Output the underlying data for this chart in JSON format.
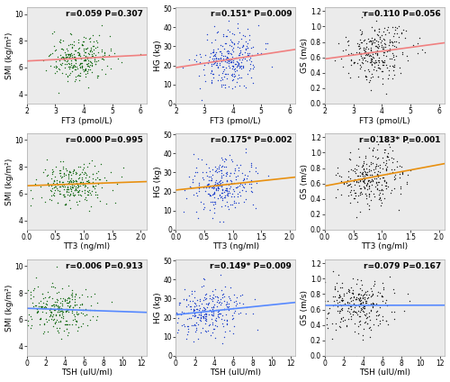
{
  "subplots": [
    {
      "row": 0,
      "col": 0,
      "xlabel": "FT3 (pmol/L)",
      "ylabel": "SMI (kg/m²)",
      "xlim": [
        2.0,
        6.2
      ],
      "ylim": [
        3.3,
        10.5
      ],
      "xticks": [
        2.0,
        3.0,
        4.0,
        5.0,
        6.0
      ],
      "yticks": [
        4.0,
        6.0,
        8.0,
        10.0
      ],
      "color": "#1a6e1a",
      "r": 0.059,
      "P": 0.307,
      "sig": false,
      "line_color": "#f08080",
      "seed": 42,
      "xmean": 3.85,
      "xstd": 0.55,
      "ymean": 6.7,
      "ystd": 0.82
    },
    {
      "row": 0,
      "col": 1,
      "xlabel": "FT3 (pmol/L)",
      "ylabel": "HG (kg)",
      "xlim": [
        2.0,
        6.2
      ],
      "ylim": [
        0.0,
        50.5
      ],
      "xticks": [
        2.0,
        3.0,
        4.0,
        5.0,
        6.0
      ],
      "yticks": [
        0.0,
        10.0,
        20.0,
        30.0,
        40.0,
        50.0
      ],
      "color": "#2244cc",
      "r": 0.151,
      "P": 0.009,
      "sig": true,
      "line_color": "#f08080",
      "seed": 43,
      "xmean": 3.85,
      "xstd": 0.55,
      "ymean": 23.0,
      "ystd": 7.0
    },
    {
      "row": 0,
      "col": 2,
      "xlabel": "FT3 (pmol/L)",
      "ylabel": "GS (m/s)",
      "xlim": [
        2.0,
        6.2
      ],
      "ylim": [
        0.0,
        1.25
      ],
      "xticks": [
        2.0,
        3.0,
        4.0,
        5.0,
        6.0
      ],
      "yticks": [
        0.0,
        0.2,
        0.4,
        0.6,
        0.8,
        1.0,
        1.2
      ],
      "color": "#222222",
      "r": 0.11,
      "P": 0.056,
      "sig": false,
      "line_color": "#f08080",
      "seed": 44,
      "xmean": 3.85,
      "xstd": 0.55,
      "ymean": 0.67,
      "ystd": 0.18
    },
    {
      "row": 1,
      "col": 0,
      "xlabel": "TT3 (ng/ml)",
      "ylabel": "SMI (kg/m²)",
      "xlim": [
        0.0,
        2.1
      ],
      "ylim": [
        3.3,
        10.5
      ],
      "xticks": [
        0.0,
        0.5,
        1.0,
        1.5,
        2.0
      ],
      "yticks": [
        4.0,
        6.0,
        8.0,
        10.0
      ],
      "color": "#1a6e1a",
      "r": 0.0,
      "P": 0.995,
      "sig": false,
      "line_color": "#e89010",
      "seed": 45,
      "xmean": 0.82,
      "xstd": 0.28,
      "ymean": 6.7,
      "ystd": 0.82
    },
    {
      "row": 1,
      "col": 1,
      "xlabel": "TT3 (ng/ml)",
      "ylabel": "HG (kg)",
      "xlim": [
        0.0,
        2.1
      ],
      "ylim": [
        0.0,
        50.5
      ],
      "xticks": [
        0.0,
        0.5,
        1.0,
        1.5,
        2.0
      ],
      "yticks": [
        0.0,
        10.0,
        20.0,
        30.0,
        40.0,
        50.0
      ],
      "color": "#2244cc",
      "r": 0.175,
      "P": 0.002,
      "sig": true,
      "line_color": "#e89010",
      "seed": 46,
      "xmean": 0.82,
      "xstd": 0.28,
      "ymean": 23.0,
      "ystd": 7.0
    },
    {
      "row": 1,
      "col": 2,
      "xlabel": "TT3 (ng/ml)",
      "ylabel": "GS (m/s)",
      "xlim": [
        0.0,
        2.1
      ],
      "ylim": [
        0.0,
        1.25
      ],
      "xticks": [
        0.0,
        0.5,
        1.0,
        1.5,
        2.0
      ],
      "yticks": [
        0.0,
        0.2,
        0.4,
        0.6,
        0.8,
        1.0,
        1.2
      ],
      "color": "#222222",
      "r": 0.183,
      "P": 0.001,
      "sig": true,
      "line_color": "#e89010",
      "seed": 47,
      "xmean": 0.82,
      "xstd": 0.28,
      "ymean": 0.67,
      "ystd": 0.18
    },
    {
      "row": 2,
      "col": 0,
      "xlabel": "TSH (uIU/ml)",
      "ylabel": "SMI (kg/m²)",
      "xlim": [
        0.0,
        12.5
      ],
      "ylim": [
        3.3,
        10.5
      ],
      "xticks": [
        0.0,
        2.0,
        4.0,
        6.0,
        8.0,
        10.0,
        12.0
      ],
      "yticks": [
        4.0,
        6.0,
        8.0,
        10.0
      ],
      "color": "#1a6e1a",
      "r": 0.006,
      "P": 0.913,
      "sig": false,
      "line_color": "#5588ff",
      "seed": 48,
      "xmean": 3.2,
      "xstd": 2.0,
      "ymean": 6.7,
      "ystd": 0.82
    },
    {
      "row": 2,
      "col": 1,
      "xlabel": "TSH (uIU/ml)",
      "ylabel": "HG (kg)",
      "xlim": [
        0.0,
        12.5
      ],
      "ylim": [
        0.0,
        50.5
      ],
      "xticks": [
        0.0,
        2.0,
        4.0,
        6.0,
        8.0,
        10.0,
        12.0
      ],
      "yticks": [
        0.0,
        10.0,
        20.0,
        30.0,
        40.0,
        50.0
      ],
      "color": "#2244cc",
      "r": 0.149,
      "P": 0.009,
      "sig": true,
      "line_color": "#5588ff",
      "seed": 49,
      "xmean": 3.2,
      "xstd": 2.0,
      "ymean": 23.0,
      "ystd": 7.0
    },
    {
      "row": 2,
      "col": 2,
      "xlabel": "TSH (uIU/ml)",
      "ylabel": "GS (m/s)",
      "xlim": [
        0.0,
        12.5
      ],
      "ylim": [
        0.0,
        1.25
      ],
      "xticks": [
        0.0,
        2.0,
        4.0,
        6.0,
        8.0,
        10.0,
        12.0
      ],
      "yticks": [
        0.0,
        0.2,
        0.4,
        0.6,
        0.8,
        1.0,
        1.2
      ],
      "color": "#222222",
      "r": 0.079,
      "P": 0.167,
      "sig": false,
      "line_color": "#5588ff",
      "seed": 50,
      "xmean": 3.2,
      "xstd": 2.0,
      "ymean": 0.67,
      "ystd": 0.18
    }
  ],
  "n_points": 270,
  "fig_bg": "#ffffff",
  "ax_bg": "#ebebeb",
  "fontsize_label": 6.5,
  "fontsize_annot": 6.5,
  "marker_size": 4,
  "line_width": 1.2
}
